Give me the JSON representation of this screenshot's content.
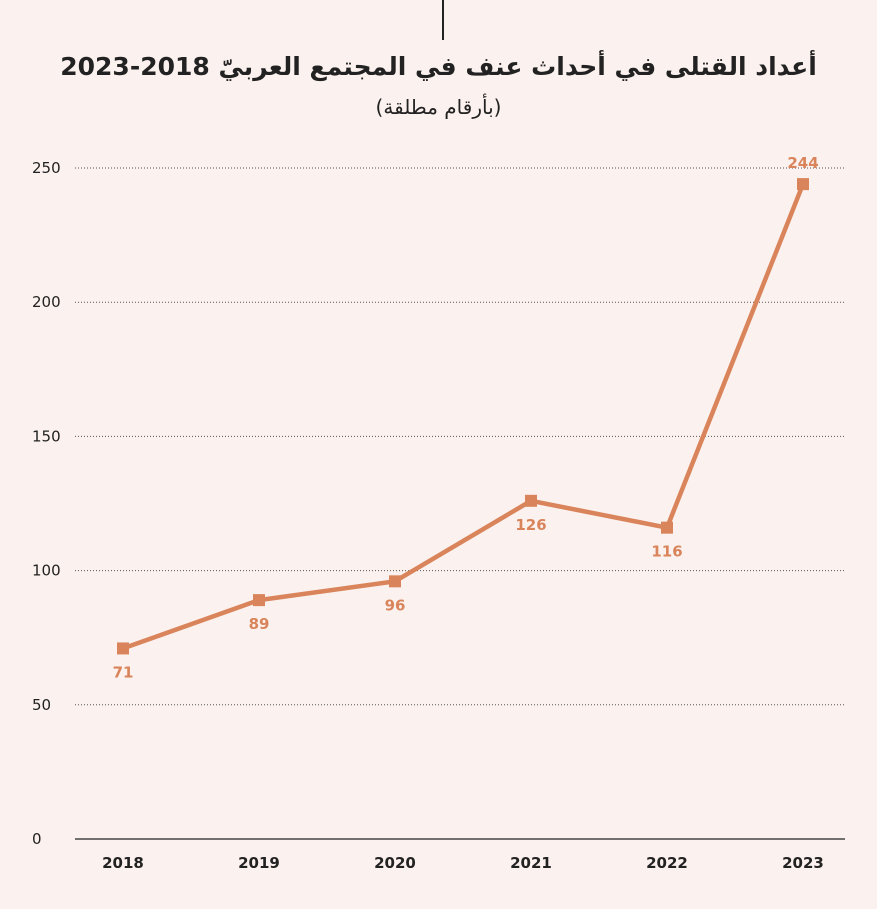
{
  "colors": {
    "background": "#fbf1ee",
    "series": "#d9845a",
    "label": "#d9845a",
    "axis": "#222222",
    "grid": "#555555"
  },
  "chart_data": {
    "type": "line",
    "title": "أعداد القتلى في أحداث عنف في المجتمع العربيّ 2018-2023",
    "subtitle": "(بأرقام مطلقة)",
    "categories": [
      "2018",
      "2019",
      "2020",
      "2021",
      "2022",
      "2023"
    ],
    "series": [
      {
        "values": [
          71,
          89,
          96,
          126,
          116,
          244
        ],
        "labels": [
          "71",
          "89",
          "96",
          "126",
          "116",
          "244"
        ]
      }
    ],
    "ylim": [
      0,
      250
    ],
    "yticks": [
      0,
      50,
      100,
      150,
      200,
      250
    ],
    "ytick_labels": [
      "0",
      "50",
      "100",
      "150",
      "200",
      "250"
    ],
    "grid": "dotted horizontal",
    "marker": "square",
    "legend": "none"
  }
}
